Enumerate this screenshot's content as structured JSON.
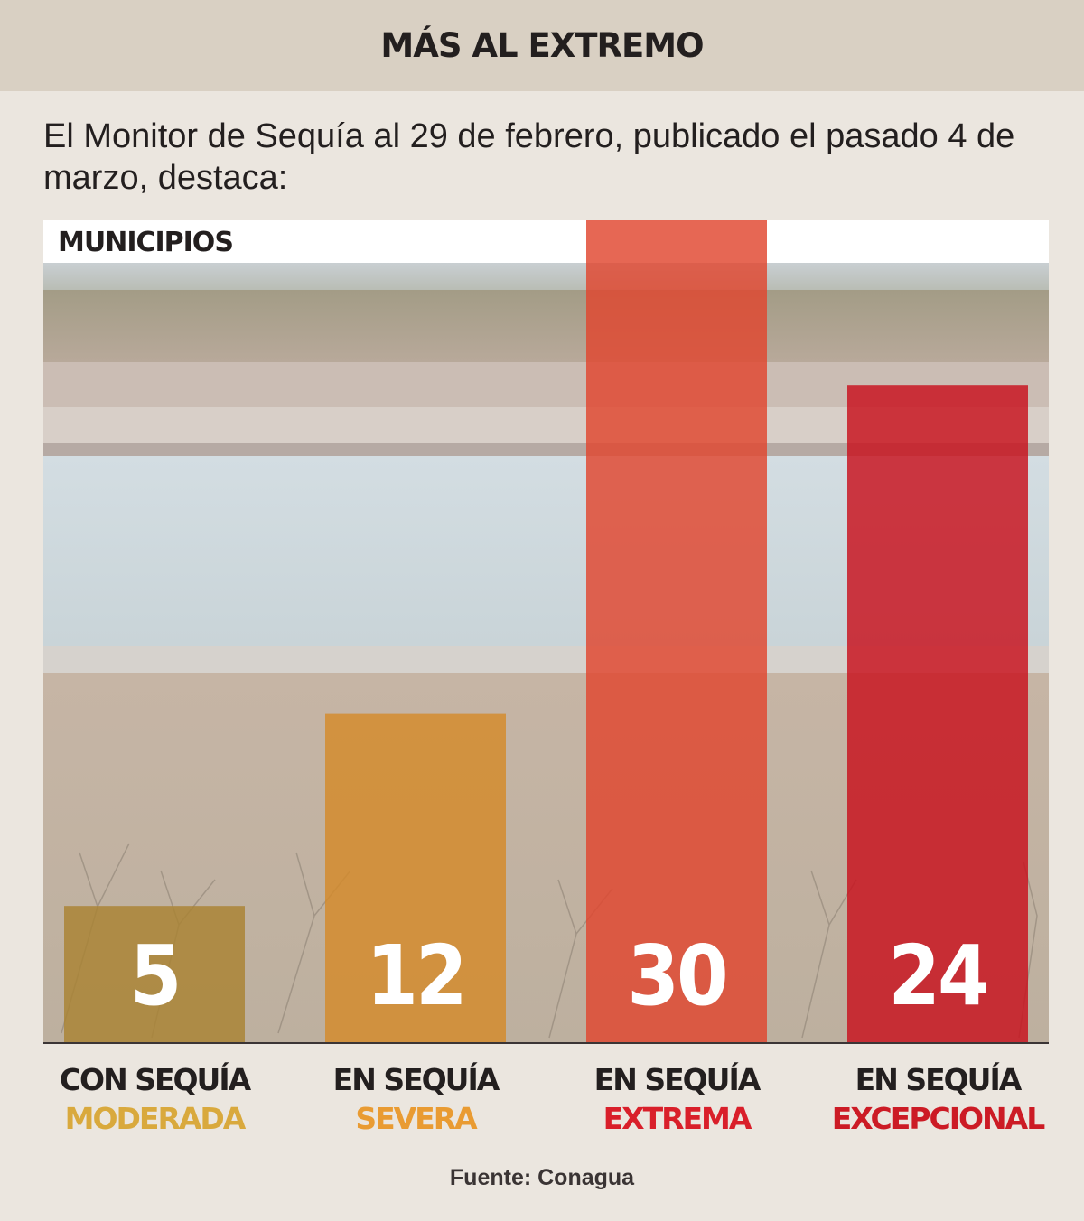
{
  "header": {
    "title": "MÁS AL EXTREMO"
  },
  "subtitle": "El Monitor de Sequía al 29 de febrero, publicado el pasado 4 de marzo, destaca:",
  "chart_data": {
    "type": "bar",
    "axis_label": "MUNICIPIOS",
    "categories": [
      {
        "line1": "CON SEQUÍA",
        "line2": "MODERADA"
      },
      {
        "line1": "EN SEQUÍA",
        "line2": "SEVERA"
      },
      {
        "line1": "EN SEQUÍA",
        "line2": "EXTREMA"
      },
      {
        "line1": "EN SEQUÍA",
        "line2": "EXCEPCIONAL"
      }
    ],
    "values": [
      5,
      12,
      30,
      24
    ],
    "bar_colors": [
      "#a98232",
      "#d48a2a",
      "#e0452e",
      "#c8101c"
    ],
    "label_colors": [
      "#d9a93d",
      "#e99b32",
      "#d91f2a",
      "#cc1b25"
    ],
    "ylim": [
      0,
      30
    ],
    "grid": false
  },
  "source": "Fuente: Conagua"
}
